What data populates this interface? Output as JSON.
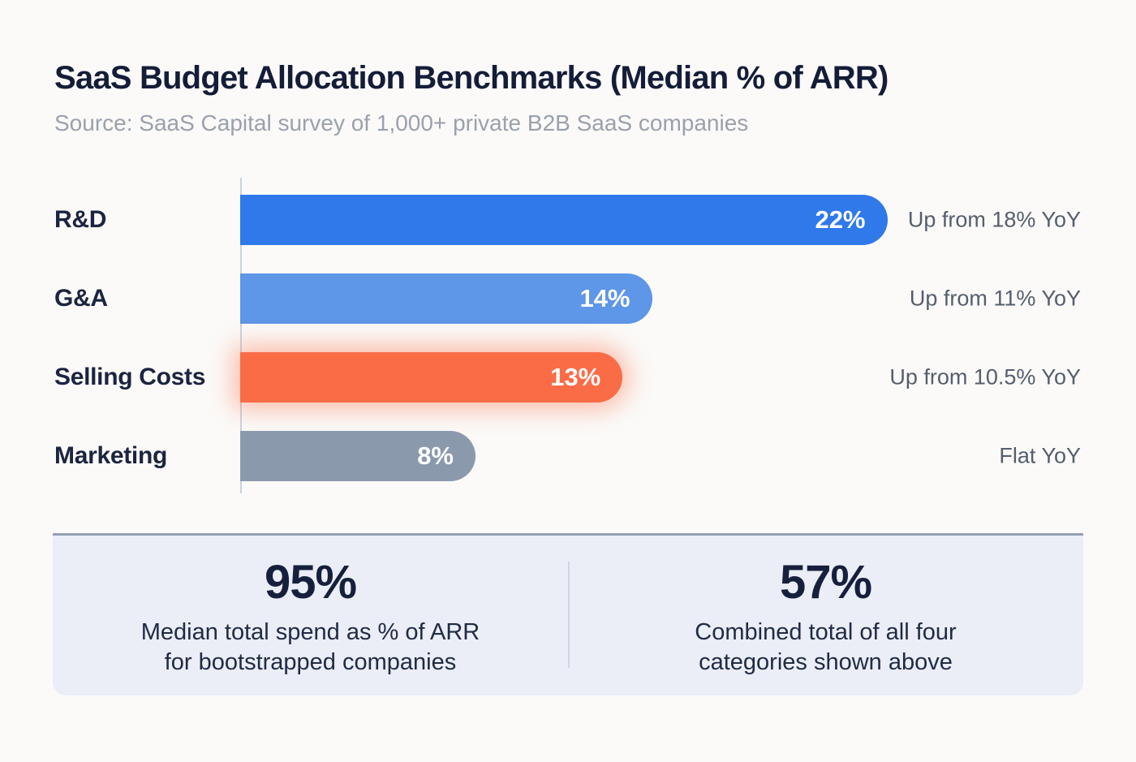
{
  "header": {
    "title": "SaaS Budget Allocation Benchmarks (Median % of ARR)",
    "source": "Source: SaaS Capital survey of 1,000+ private B2B SaaS companies"
  },
  "chart_data": {
    "type": "bar",
    "orientation": "horizontal",
    "title": "SaaS Budget Allocation Benchmarks (Median % of ARR)",
    "categories": [
      "R&D",
      "G&A",
      "Selling Costs",
      "Marketing"
    ],
    "values": [
      22,
      14,
      13,
      8
    ],
    "value_labels": [
      "22%",
      "14%",
      "13%",
      "8%"
    ],
    "annotations": [
      "Up from 18% YoY",
      "Up from 11% YoY",
      "Up from 10.5% YoY",
      "Flat YoY"
    ],
    "bar_colors": [
      "#3079ea",
      "#5e96e8",
      "#fa6c46",
      "#8b99ad"
    ],
    "highlight_index": 2,
    "highlight_glow_color": "rgba(250,108,70,0.45)",
    "unit": "% of ARR",
    "xlim": [
      0,
      24
    ],
    "grid": false,
    "legend": false
  },
  "stats": [
    {
      "value": "95%",
      "label_lines": [
        "Median total spend as % of ARR",
        "for bootstrapped companies"
      ]
    },
    {
      "value": "57%",
      "label_lines": [
        "Combined total of all four",
        "categories shown above"
      ]
    }
  ],
  "colors": {
    "background": "#fbfaf8",
    "title_text": "#141d38",
    "subtitle_text": "#9aa1ac",
    "category_text": "#1b2440",
    "annotation_text": "#555e6d",
    "axis_line": "#ccd3dd",
    "panel_background": "#ebeef7",
    "panel_top_border": "#93a2b4",
    "stat_text": "#16203c"
  }
}
